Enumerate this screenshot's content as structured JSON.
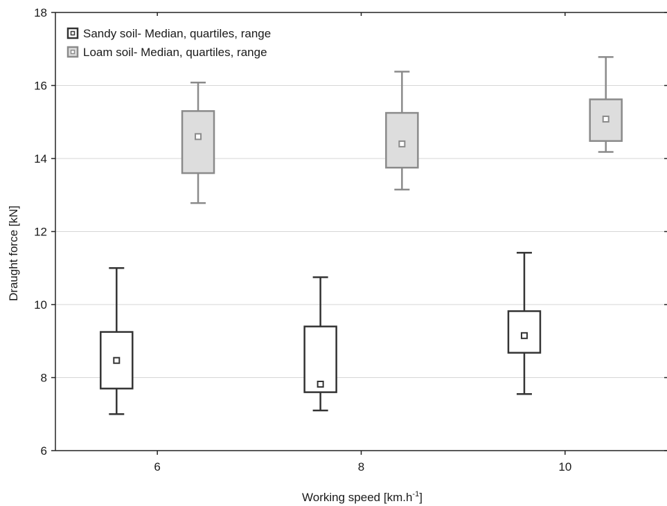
{
  "chart_data": {
    "type": "boxplot",
    "xlabel": "Working speed [km.h",
    "xlabel_sup": "-1",
    "xlabel_tail": "]",
    "ylabel": "Draught force [kN]",
    "xlim": [
      5,
      11
    ],
    "ylim": [
      6,
      18
    ],
    "x_ticks": [
      6,
      8,
      10
    ],
    "y_ticks": [
      6,
      8,
      10,
      12,
      14,
      16,
      18
    ],
    "grid": true,
    "legend_position": "top-left",
    "series": [
      {
        "name": "Sandy soil- Median, quartiles, range",
        "stroke": "#333333",
        "fill": "#ffffff",
        "boxes": [
          {
            "x": 6,
            "min": 7.0,
            "q1": 7.7,
            "median": 8.47,
            "q3": 9.25,
            "max": 11.0
          },
          {
            "x": 8,
            "min": 7.1,
            "q1": 7.6,
            "median": 7.82,
            "q3": 9.4,
            "max": 10.75
          },
          {
            "x": 10,
            "min": 7.55,
            "q1": 8.68,
            "median": 9.15,
            "q3": 9.82,
            "max": 11.42
          }
        ]
      },
      {
        "name": "Loam soil- Median, quartiles, range",
        "stroke": "#8a8a8a",
        "fill": "#dddddd",
        "boxes": [
          {
            "x": 6,
            "min": 12.78,
            "q1": 13.6,
            "median": 14.6,
            "q3": 15.3,
            "max": 16.08
          },
          {
            "x": 8,
            "min": 13.15,
            "q1": 13.75,
            "median": 14.4,
            "q3": 15.25,
            "max": 16.38
          },
          {
            "x": 10,
            "min": 14.18,
            "q1": 14.48,
            "median": 15.08,
            "q3": 15.62,
            "max": 16.78
          }
        ]
      }
    ]
  }
}
